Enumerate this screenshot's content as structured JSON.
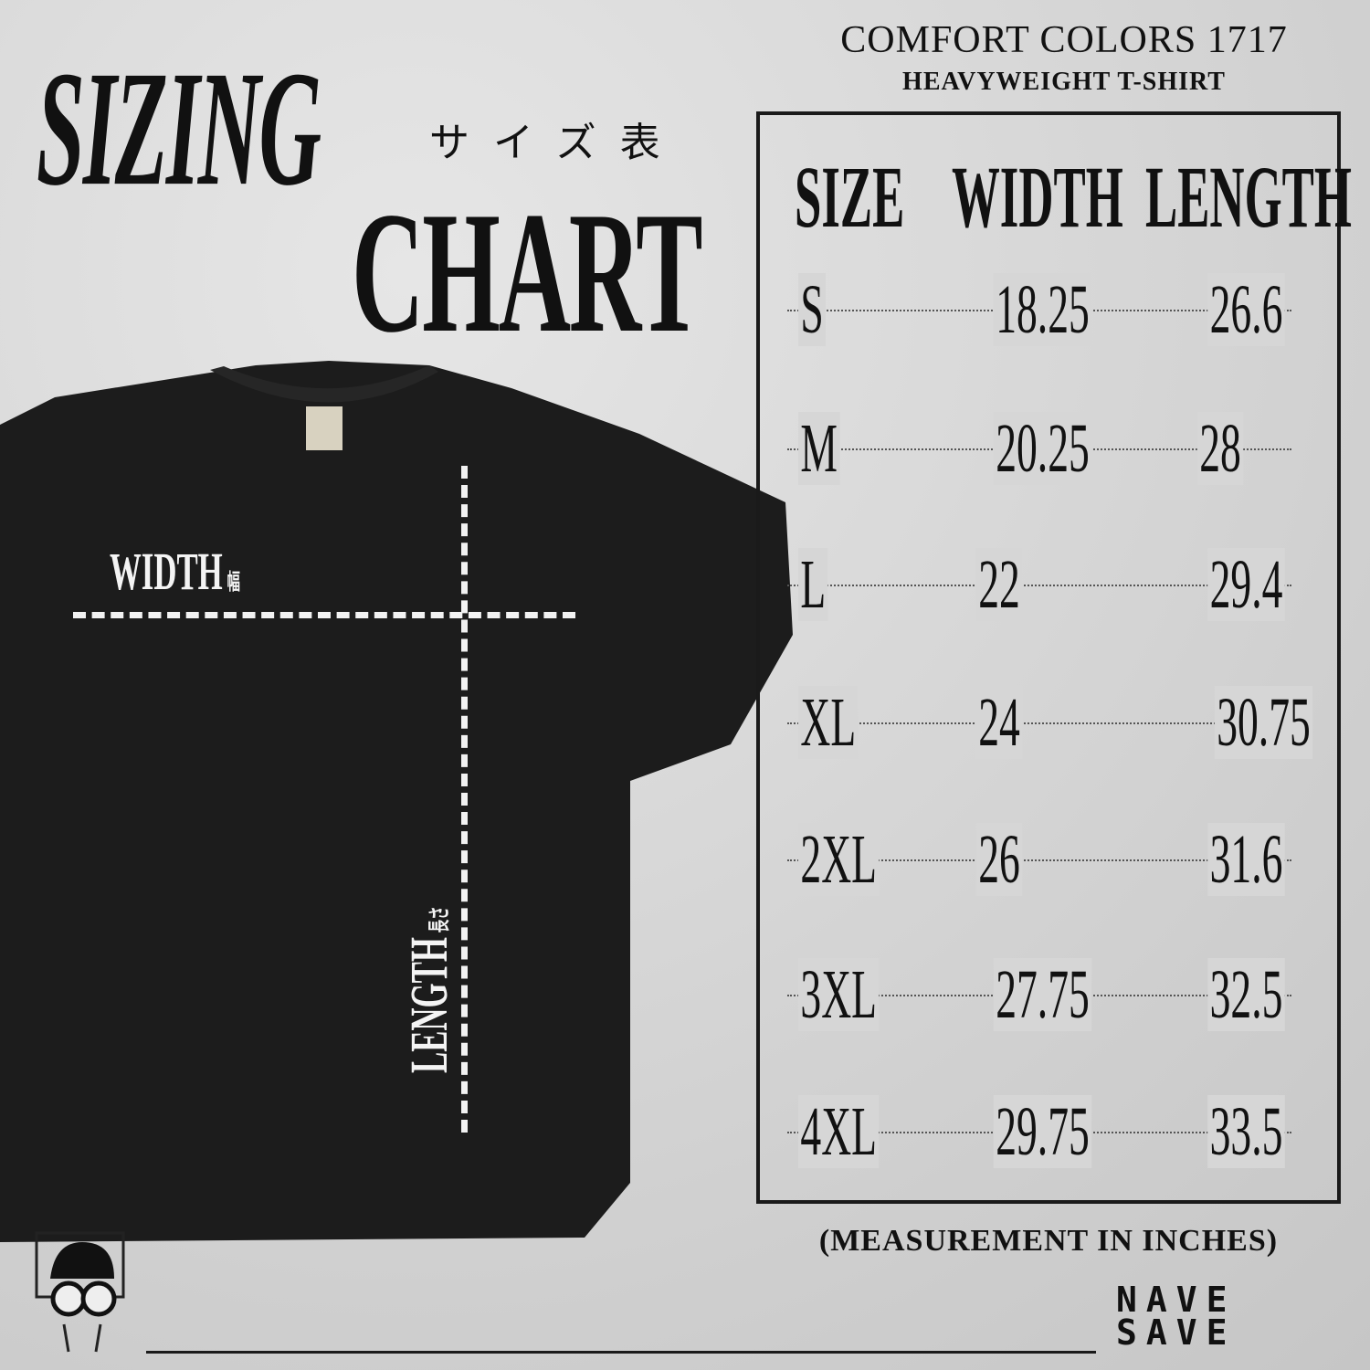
{
  "title": {
    "line1": "SIZING",
    "line2": "CHART",
    "japanese": "サイズ表"
  },
  "product": {
    "brand": "COMFORT COLORS 1717",
    "type": "HEAVYWEIGHT T-SHIRT"
  },
  "table": {
    "headers": [
      "SIZE",
      "WIDTH",
      "LENGTH"
    ],
    "rows": [
      {
        "size": "S",
        "width": "18.25",
        "length": "26.6"
      },
      {
        "size": "M",
        "width": "20.25",
        "length": "28"
      },
      {
        "size": "L",
        "width": "22",
        "length": "29.4"
      },
      {
        "size": "XL",
        "width": "24",
        "length": "30.75"
      },
      {
        "size": "2XL",
        "width": "26",
        "length": "31.6"
      },
      {
        "size": "3XL",
        "width": "27.75",
        "length": "32.5"
      },
      {
        "size": "4XL",
        "width": "29.75",
        "length": "33.5"
      }
    ]
  },
  "note": "(MEASUREMENT IN INCHES)",
  "shirt": {
    "width_label": "WIDTH",
    "width_label_jp": "幅",
    "length_label": "LENGTH",
    "length_label_jp": "長さ",
    "color": "#1c1c1c"
  },
  "logo": {
    "line1": "NAVE",
    "line2": "SAVE"
  }
}
